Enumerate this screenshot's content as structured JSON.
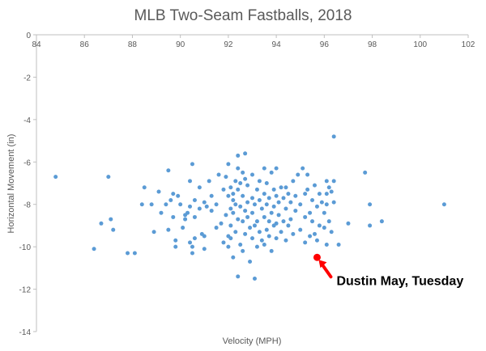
{
  "colors": {
    "point": "#5b9bd5",
    "highlight": "#ff0000",
    "axis": "#bfbfbf",
    "text": "#595959"
  },
  "chart_data": {
    "type": "scatter",
    "title": "MLB Two-Seam Fastballs, 2018",
    "xlabel": "Velocity (MPH)",
    "ylabel": "Horizontal Movement (in)",
    "xlim": [
      84,
      102
    ],
    "ylim": [
      -14,
      0
    ],
    "x_axis_position": "top",
    "grid": false,
    "x_ticks": [
      "84",
      "86",
      "88",
      "90",
      "92",
      "94",
      "96",
      "98",
      "100",
      "102"
    ],
    "y_ticks": [
      "0",
      "-2",
      "-4",
      "-6",
      "-8",
      "-10",
      "-12",
      "-14"
    ],
    "points": [
      [
        84.8,
        -6.7
      ],
      [
        86.4,
        -10.1
      ],
      [
        86.7,
        -8.9
      ],
      [
        87.0,
        -6.7
      ],
      [
        87.1,
        -8.7
      ],
      [
        87.2,
        -9.2
      ],
      [
        87.8,
        -10.3
      ],
      [
        88.1,
        -10.3
      ],
      [
        88.4,
        -8.0
      ],
      [
        88.5,
        -7.2
      ],
      [
        88.8,
        -8.0
      ],
      [
        88.9,
        -9.3
      ],
      [
        89.1,
        -7.4
      ],
      [
        89.2,
        -8.4
      ],
      [
        89.4,
        -8.0
      ],
      [
        89.5,
        -6.4
      ],
      [
        89.5,
        -9.2
      ],
      [
        89.6,
        -7.8
      ],
      [
        89.7,
        -7.5
      ],
      [
        89.7,
        -8.6
      ],
      [
        89.8,
        -9.7
      ],
      [
        89.8,
        -10.0
      ],
      [
        89.9,
        -7.6
      ],
      [
        90.0,
        -8.0
      ],
      [
        90.1,
        -9.1
      ],
      [
        90.2,
        -8.5
      ],
      [
        90.2,
        -8.7
      ],
      [
        90.3,
        -8.4
      ],
      [
        90.4,
        -6.9
      ],
      [
        90.4,
        -8.1
      ],
      [
        90.4,
        -9.8
      ],
      [
        90.5,
        -6.1
      ],
      [
        90.5,
        -10.0
      ],
      [
        90.5,
        -10.3
      ],
      [
        90.6,
        -7.8
      ],
      [
        90.6,
        -8.6
      ],
      [
        90.6,
        -9.6
      ],
      [
        90.8,
        -7.2
      ],
      [
        90.8,
        -8.2
      ],
      [
        90.9,
        -9.4
      ],
      [
        91.0,
        -7.9
      ],
      [
        91.0,
        -9.5
      ],
      [
        91.0,
        -10.1
      ],
      [
        91.1,
        -8.1
      ],
      [
        91.2,
        -6.9
      ],
      [
        91.3,
        -7.6
      ],
      [
        91.3,
        -8.3
      ],
      [
        91.5,
        -8.0
      ],
      [
        91.5,
        -9.1
      ],
      [
        91.6,
        -6.6
      ],
      [
        91.7,
        -8.9
      ],
      [
        91.8,
        -7.3
      ],
      [
        91.8,
        -9.8
      ],
      [
        91.9,
        -6.7
      ],
      [
        91.9,
        -8.5
      ],
      [
        92.0,
        -6.1
      ],
      [
        92.0,
        -7.6
      ],
      [
        92.0,
        -9.5
      ],
      [
        92.0,
        -10.0
      ],
      [
        92.1,
        -7.2
      ],
      [
        92.1,
        -8.2
      ],
      [
        92.1,
        -9.0
      ],
      [
        92.1,
        -9.6
      ],
      [
        92.2,
        -7.5
      ],
      [
        92.2,
        -7.8
      ],
      [
        92.2,
        -8.4
      ],
      [
        92.2,
        -10.5
      ],
      [
        92.3,
        -6.9
      ],
      [
        92.3,
        -8.0
      ],
      [
        92.3,
        -9.3
      ],
      [
        92.4,
        -5.7
      ],
      [
        92.4,
        -6.3
      ],
      [
        92.4,
        -7.3
      ],
      [
        92.4,
        -8.7
      ],
      [
        92.4,
        -11.4
      ],
      [
        92.5,
        -7.0
      ],
      [
        92.5,
        -8.1
      ],
      [
        92.5,
        -9.9
      ],
      [
        92.6,
        -6.5
      ],
      [
        92.6,
        -7.6
      ],
      [
        92.6,
        -8.8
      ],
      [
        92.6,
        -10.2
      ],
      [
        92.7,
        -5.6
      ],
      [
        92.7,
        -6.8
      ],
      [
        92.7,
        -8.3
      ],
      [
        92.7,
        -9.4
      ],
      [
        92.8,
        -7.1
      ],
      [
        92.8,
        -7.9
      ],
      [
        92.8,
        -8.6
      ],
      [
        92.9,
        -9.1
      ],
      [
        92.9,
        -10.7
      ],
      [
        93.0,
        -6.6
      ],
      [
        93.0,
        -7.7
      ],
      [
        93.0,
        -8.4
      ],
      [
        93.0,
        -9.6
      ],
      [
        93.1,
        -11.5
      ],
      [
        93.1,
        -8.0
      ],
      [
        93.1,
        -9.0
      ],
      [
        93.2,
        -7.3
      ],
      [
        93.2,
        -8.8
      ],
      [
        93.2,
        -10.0
      ],
      [
        93.3,
        -6.9
      ],
      [
        93.3,
        -7.8
      ],
      [
        93.3,
        -9.3
      ],
      [
        93.4,
        -8.2
      ],
      [
        93.4,
        -9.7
      ],
      [
        93.5,
        -6.3
      ],
      [
        93.5,
        -7.5
      ],
      [
        93.5,
        -8.6
      ],
      [
        93.5,
        -9.9
      ],
      [
        93.6,
        -7.0
      ],
      [
        93.6,
        -8.0
      ],
      [
        93.6,
        -9.2
      ],
      [
        93.7,
        -7.7
      ],
      [
        93.7,
        -8.8
      ],
      [
        93.7,
        -9.5
      ],
      [
        93.8,
        -6.5
      ],
      [
        93.8,
        -8.4
      ],
      [
        93.8,
        -10.2
      ],
      [
        93.9,
        -7.3
      ],
      [
        93.9,
        -8.1
      ],
      [
        93.9,
        -9.0
      ],
      [
        94.0,
        -6.3
      ],
      [
        94.0,
        -7.6
      ],
      [
        94.0,
        -8.9
      ],
      [
        94.0,
        -9.6
      ],
      [
        94.1,
        -7.9
      ],
      [
        94.1,
        -8.5
      ],
      [
        94.2,
        -7.2
      ],
      [
        94.2,
        -9.3
      ],
      [
        94.3,
        -7.7
      ],
      [
        94.3,
        -8.8
      ],
      [
        94.4,
        -7.2
      ],
      [
        94.4,
        -8.2
      ],
      [
        94.4,
        -9.7
      ],
      [
        94.5,
        -7.5
      ],
      [
        94.5,
        -9.0
      ],
      [
        94.6,
        -7.9
      ],
      [
        94.6,
        -8.7
      ],
      [
        94.7,
        -6.9
      ],
      [
        94.7,
        -9.4
      ],
      [
        94.8,
        -7.6
      ],
      [
        94.8,
        -8.3
      ],
      [
        94.9,
        -6.6
      ],
      [
        95.0,
        -8.0
      ],
      [
        95.0,
        -9.2
      ],
      [
        95.1,
        -6.3
      ],
      [
        95.2,
        -7.5
      ],
      [
        95.2,
        -8.6
      ],
      [
        95.2,
        -9.8
      ],
      [
        95.3,
        -6.6
      ],
      [
        95.3,
        -7.3
      ],
      [
        95.4,
        -8.4
      ],
      [
        95.4,
        -9.5
      ],
      [
        95.5,
        -7.8
      ],
      [
        95.5,
        -8.8
      ],
      [
        95.6,
        -7.1
      ],
      [
        95.6,
        -9.4
      ],
      [
        95.7,
        -8.1
      ],
      [
        95.7,
        -9.7
      ],
      [
        95.8,
        -7.5
      ],
      [
        95.8,
        -9.0
      ],
      [
        95.9,
        -7.9
      ],
      [
        96.0,
        -8.4
      ],
      [
        96.0,
        -9.1
      ],
      [
        96.1,
        -6.9
      ],
      [
        96.1,
        -7.5
      ],
      [
        96.1,
        -8.0
      ],
      [
        96.1,
        -9.9
      ],
      [
        96.2,
        -7.2
      ],
      [
        96.2,
        -8.8
      ],
      [
        96.3,
        -7.4
      ],
      [
        96.3,
        -9.3
      ],
      [
        96.4,
        -4.8
      ],
      [
        96.4,
        -6.9
      ],
      [
        96.4,
        -7.9
      ],
      [
        96.6,
        -9.9
      ],
      [
        97.0,
        -8.9
      ],
      [
        97.7,
        -6.5
      ],
      [
        97.9,
        -8.0
      ],
      [
        97.9,
        -9.0
      ],
      [
        98.4,
        -8.8
      ],
      [
        101.0,
        -8.0
      ]
    ],
    "highlight": {
      "x": 95.7,
      "y": -10.5,
      "label": "Dustin May, Tuesday"
    }
  }
}
